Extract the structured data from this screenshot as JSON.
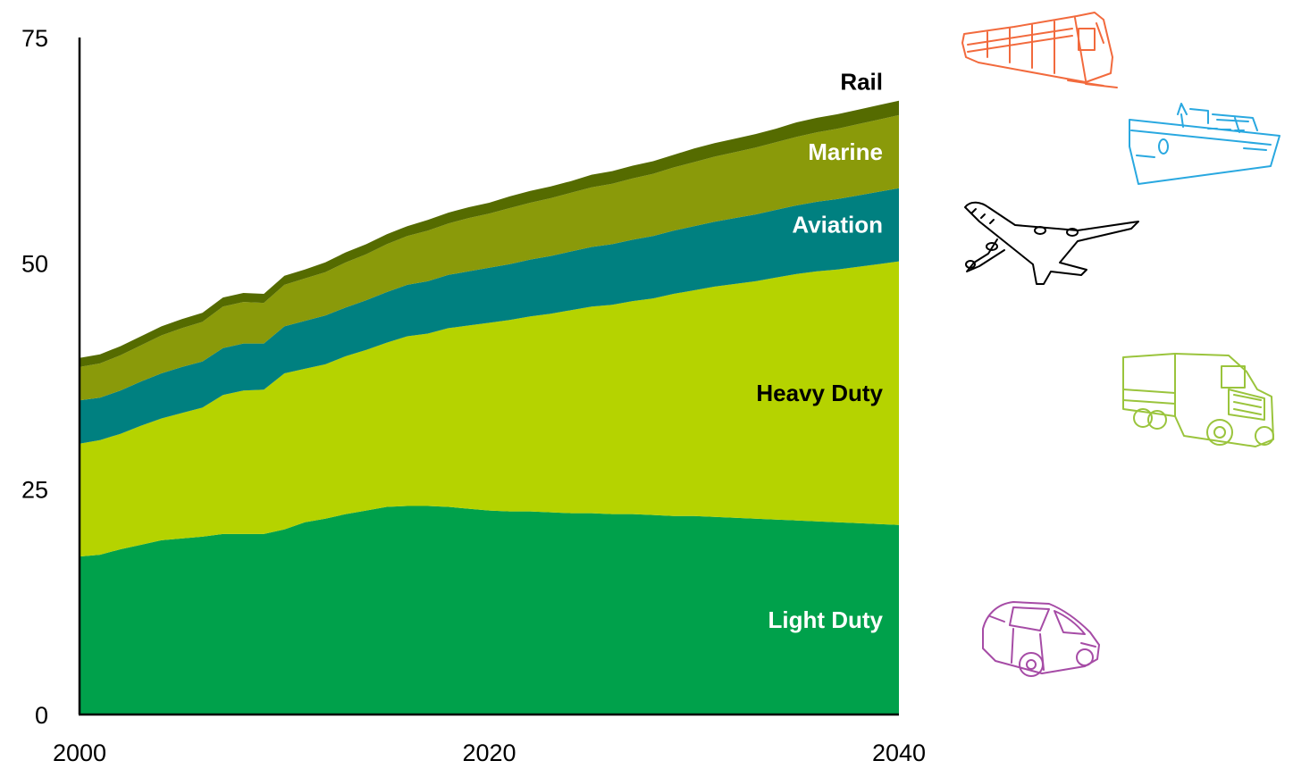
{
  "chart_data": {
    "type": "area",
    "stacked": true,
    "x": [
      2000,
      2001,
      2002,
      2003,
      2004,
      2005,
      2006,
      2007,
      2008,
      2009,
      2010,
      2011,
      2012,
      2013,
      2014,
      2015,
      2016,
      2017,
      2018,
      2019,
      2020,
      2021,
      2022,
      2023,
      2024,
      2025,
      2026,
      2027,
      2028,
      2029,
      2030,
      2031,
      2032,
      2033,
      2034,
      2035,
      2036,
      2037,
      2038,
      2039,
      2040
    ],
    "xlim": [
      2000,
      2040
    ],
    "ylim": [
      0,
      75
    ],
    "x_ticks": [
      "2000",
      "2020",
      "2040"
    ],
    "y_ticks": [
      "0",
      "25",
      "50",
      "75"
    ],
    "grid": false,
    "legend": "labels inside areas at right",
    "series": [
      {
        "name": "Light Duty",
        "color": "#00a14b",
        "label_color": "#ffffff",
        "values": [
          17.5,
          17.7,
          18.3,
          18.8,
          19.3,
          19.5,
          19.7,
          20.0,
          20.0,
          20.0,
          20.5,
          21.3,
          21.7,
          22.2,
          22.6,
          23.0,
          23.1,
          23.1,
          23.0,
          22.8,
          22.6,
          22.5,
          22.5,
          22.4,
          22.3,
          22.3,
          22.2,
          22.2,
          22.1,
          22.0,
          22.0,
          21.9,
          21.8,
          21.7,
          21.6,
          21.5,
          21.4,
          21.3,
          21.2,
          21.1,
          21.0
        ]
      },
      {
        "name": "Heavy Duty",
        "color": "#b5d300",
        "label_color": "#000000",
        "values": [
          12.5,
          12.7,
          12.8,
          13.2,
          13.5,
          13.9,
          14.3,
          15.4,
          15.9,
          16.0,
          17.3,
          17.0,
          17.1,
          17.5,
          17.8,
          18.2,
          18.8,
          19.1,
          19.8,
          20.3,
          20.8,
          21.2,
          21.6,
          22.0,
          22.5,
          22.9,
          23.2,
          23.6,
          24.0,
          24.6,
          25.0,
          25.5,
          25.9,
          26.3,
          26.8,
          27.3,
          27.7,
          28.0,
          28.4,
          28.8,
          29.2
        ]
      },
      {
        "name": "Aviation",
        "color": "#008080",
        "label_color": "#ffffff",
        "values": [
          4.8,
          4.7,
          4.8,
          4.9,
          5.0,
          5.1,
          5.1,
          5.2,
          5.2,
          5.1,
          5.2,
          5.3,
          5.4,
          5.4,
          5.5,
          5.6,
          5.7,
          5.8,
          5.9,
          6.0,
          6.1,
          6.2,
          6.3,
          6.4,
          6.5,
          6.6,
          6.7,
          6.8,
          6.9,
          7.0,
          7.1,
          7.2,
          7.3,
          7.4,
          7.5,
          7.6,
          7.7,
          7.8,
          7.9,
          8.0,
          8.1
        ]
      },
      {
        "name": "Marine",
        "color": "#8a9a0a",
        "label_color": "#ffffff",
        "values": [
          3.7,
          3.8,
          3.9,
          4.0,
          4.2,
          4.3,
          4.4,
          4.6,
          4.6,
          4.5,
          4.6,
          4.7,
          4.8,
          5.0,
          5.1,
          5.3,
          5.4,
          5.6,
          5.7,
          5.9,
          6.0,
          6.2,
          6.3,
          6.4,
          6.5,
          6.6,
          6.7,
          6.8,
          6.9,
          7.0,
          7.1,
          7.2,
          7.3,
          7.4,
          7.5,
          7.6,
          7.7,
          7.8,
          7.9,
          8.0,
          8.1
        ]
      },
      {
        "name": "Rail",
        "color": "#556b00",
        "label_color": "#000000",
        "values": [
          1.0,
          1.0,
          1.0,
          1.0,
          1.0,
          1.0,
          1.0,
          1.0,
          1.0,
          1.0,
          1.0,
          1.0,
          1.1,
          1.1,
          1.1,
          1.1,
          1.1,
          1.2,
          1.2,
          1.2,
          1.2,
          1.3,
          1.3,
          1.3,
          1.3,
          1.4,
          1.4,
          1.4,
          1.4,
          1.4,
          1.5,
          1.5,
          1.5,
          1.5,
          1.5,
          1.6,
          1.6,
          1.6,
          1.6,
          1.6,
          1.6
        ]
      }
    ]
  },
  "icons": [
    {
      "name": "train-icon",
      "color": "#f26a3d"
    },
    {
      "name": "ship-icon",
      "color": "#29a8e0"
    },
    {
      "name": "airplane-icon",
      "color": "#000000"
    },
    {
      "name": "truck-icon",
      "color": "#9ac43c"
    },
    {
      "name": "car-icon",
      "color": "#a64ca6"
    }
  ]
}
